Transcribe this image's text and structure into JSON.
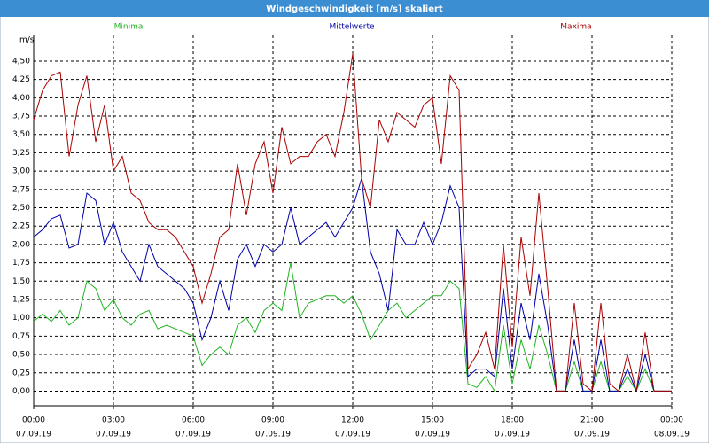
{
  "chart_data": {
    "type": "line",
    "title": "Windgeschwindigkeit [m/s] skaliert",
    "y_unit": "m/s",
    "grid": true,
    "xlim": [
      0,
      1440
    ],
    "ylim": [
      -0.2,
      4.85
    ],
    "xticks": [
      {
        "value": 0,
        "label": "00:00"
      },
      {
        "value": 180,
        "label": "03:00"
      },
      {
        "value": 360,
        "label": "06:00"
      },
      {
        "value": 540,
        "label": "09:00"
      },
      {
        "value": 720,
        "label": "12:00"
      },
      {
        "value": 900,
        "label": "15:00"
      },
      {
        "value": 1080,
        "label": "18:00"
      },
      {
        "value": 1260,
        "label": "21:00"
      },
      {
        "value": 1440,
        "label": "00:00"
      }
    ],
    "xtick_dates": [
      "07.09.19",
      "07.09.19",
      "07.09.19",
      "07.09.19",
      "07.09.19",
      "07.09.19",
      "07.09.19",
      "07.09.19",
      "08.09.19"
    ],
    "yticks": [
      {
        "value": 0,
        "label": "0,00"
      },
      {
        "value": 0.25,
        "label": "0,25"
      },
      {
        "value": 0.5,
        "label": "0,50"
      },
      {
        "value": 0.75,
        "label": "0,75"
      },
      {
        "value": 1,
        "label": "1,00"
      },
      {
        "value": 1.25,
        "label": "1,25"
      },
      {
        "value": 1.5,
        "label": "1,50"
      },
      {
        "value": 1.75,
        "label": "1,75"
      },
      {
        "value": 2,
        "label": "2,00"
      },
      {
        "value": 2.25,
        "label": "2,25"
      },
      {
        "value": 2.5,
        "label": "2,50"
      },
      {
        "value": 2.75,
        "label": "2,75"
      },
      {
        "value": 3,
        "label": "3,00"
      },
      {
        "value": 3.25,
        "label": "3,25"
      },
      {
        "value": 3.5,
        "label": "3,50"
      },
      {
        "value": 3.75,
        "label": "3,75"
      },
      {
        "value": 4,
        "label": "4,00"
      },
      {
        "value": 4.25,
        "label": "4,25"
      },
      {
        "value": 4.5,
        "label": "4,50"
      }
    ],
    "x": [
      0,
      20,
      40,
      60,
      80,
      100,
      120,
      140,
      160,
      180,
      200,
      220,
      240,
      260,
      280,
      300,
      320,
      340,
      360,
      380,
      400,
      420,
      440,
      460,
      480,
      500,
      520,
      540,
      560,
      580,
      600,
      620,
      640,
      660,
      680,
      700,
      720,
      740,
      760,
      780,
      800,
      820,
      840,
      860,
      880,
      900,
      920,
      940,
      960,
      980,
      1000,
      1020,
      1040,
      1060,
      1080,
      1100,
      1120,
      1140,
      1160,
      1180,
      1200,
      1220,
      1240,
      1260,
      1280,
      1300,
      1320,
      1340,
      1360,
      1380,
      1400,
      1420,
      1440
    ],
    "series": [
      {
        "name": "Minima",
        "color": "#22b422",
        "values": [
          0.95,
          1.05,
          0.95,
          1.1,
          0.9,
          1.0,
          1.5,
          1.4,
          1.1,
          1.25,
          1.0,
          0.9,
          1.05,
          1.1,
          0.85,
          0.9,
          0.85,
          0.8,
          0.75,
          0.35,
          0.5,
          0.6,
          0.5,
          0.9,
          1.0,
          0.8,
          1.1,
          1.2,
          1.1,
          1.75,
          1.0,
          1.2,
          1.25,
          1.3,
          1.3,
          1.2,
          1.3,
          1.05,
          0.7,
          0.9,
          1.1,
          1.2,
          1.0,
          1.1,
          1.2,
          1.3,
          1.3,
          1.5,
          1.4,
          0.1,
          0.05,
          0.2,
          0,
          0.9,
          0.1,
          0.7,
          0.3,
          0.9,
          0.5,
          0,
          0,
          0.4,
          0,
          0,
          0.4,
          0,
          0,
          0.2,
          0,
          0.3,
          0,
          0,
          0
        ]
      },
      {
        "name": "Mittelwerte",
        "color": "#0000aa",
        "values": [
          2.1,
          2.2,
          2.35,
          2.4,
          1.95,
          2.0,
          2.7,
          2.6,
          2.0,
          2.3,
          1.9,
          1.7,
          1.5,
          2.0,
          1.7,
          1.6,
          1.5,
          1.4,
          1.2,
          0.7,
          1.0,
          1.5,
          1.1,
          1.8,
          2.0,
          1.7,
          2.0,
          1.9,
          2.0,
          2.5,
          2.0,
          2.1,
          2.2,
          2.3,
          2.1,
          2.3,
          2.5,
          2.9,
          1.9,
          1.6,
          1.1,
          2.2,
          2.0,
          2.0,
          2.3,
          2.0,
          2.3,
          2.8,
          2.5,
          0.2,
          0.3,
          0.3,
          0.2,
          1.4,
          0.3,
          1.2,
          0.7,
          1.6,
          0.9,
          0,
          0,
          0.7,
          0,
          0,
          0.7,
          0,
          0,
          0.3,
          0,
          0.5,
          0,
          0,
          0
        ]
      },
      {
        "name": "Maxima",
        "color": "#aa0000",
        "values": [
          3.7,
          4.1,
          4.3,
          4.35,
          3.2,
          3.9,
          4.3,
          3.4,
          3.9,
          3.0,
          3.2,
          2.7,
          2.6,
          2.3,
          2.2,
          2.2,
          2.1,
          1.9,
          1.7,
          1.2,
          1.6,
          2.1,
          2.2,
          3.1,
          2.4,
          3.1,
          3.4,
          2.7,
          3.6,
          3.1,
          3.2,
          3.2,
          3.4,
          3.5,
          3.2,
          3.8,
          4.6,
          2.9,
          2.5,
          3.7,
          3.4,
          3.8,
          3.7,
          3.6,
          3.9,
          4.0,
          3.1,
          4.3,
          4.1,
          0.3,
          0.5,
          0.8,
          0.3,
          2.0,
          0.6,
          2.1,
          1.3,
          2.7,
          1.4,
          0,
          0,
          1.2,
          0.1,
          0,
          1.2,
          0.1,
          0,
          0.5,
          0,
          0.8,
          0,
          0,
          0
        ]
      }
    ]
  }
}
